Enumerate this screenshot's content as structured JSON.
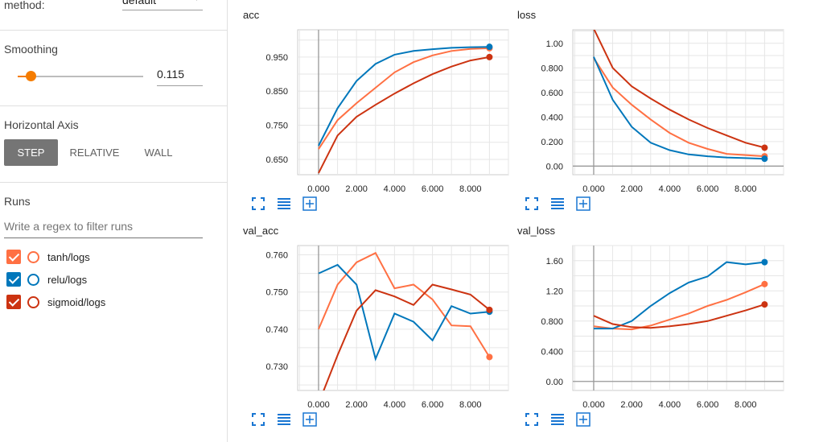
{
  "sidebar": {
    "method_label": "method:",
    "method_value": "default",
    "smoothing_label": "Smoothing",
    "smoothing_value": "0.115",
    "smoothing_fraction": 0.115,
    "horizontal_axis_label": "Horizontal Axis",
    "axis_buttons": [
      "STEP",
      "RELATIVE",
      "WALL"
    ],
    "runs_label": "Runs",
    "regex_placeholder": "Write a regex to filter runs",
    "runs": [
      {
        "name": "tanh/logs",
        "color": "#ff7043"
      },
      {
        "name": "relu/logs",
        "color": "#0077bb"
      },
      {
        "name": "sigmoid/logs",
        "color": "#cc3311"
      }
    ]
  },
  "charts": {
    "acc": {
      "title": "acc"
    },
    "loss": {
      "title": "loss"
    },
    "val_acc": {
      "title": "val_acc"
    },
    "val_loss": {
      "title": "val_loss"
    }
  },
  "chart_data": [
    {
      "type": "line",
      "title": "acc",
      "x": [
        0,
        1000,
        2000,
        3000,
        4000,
        5000,
        6000,
        7000,
        8000,
        9000
      ],
      "x_ticks": [
        "0.000",
        "2.000",
        "4.000",
        "6.000",
        "8.000"
      ],
      "y_ticks": [
        "0.650",
        "0.750",
        "0.850",
        "0.950"
      ],
      "xlim": [
        -1100,
        10000
      ],
      "ylim": [
        0.605,
        1.03
      ],
      "series": [
        {
          "name": "tanh/logs",
          "color": "#ff7043",
          "values": [
            0.68,
            0.765,
            0.815,
            0.86,
            0.905,
            0.935,
            0.955,
            0.968,
            0.974,
            0.976
          ]
        },
        {
          "name": "relu/logs",
          "color": "#0077bb",
          "values": [
            0.69,
            0.8,
            0.88,
            0.93,
            0.957,
            0.968,
            0.973,
            0.977,
            0.979,
            0.98
          ]
        },
        {
          "name": "sigmoid/logs",
          "color": "#cc3311",
          "values": [
            0.61,
            0.72,
            0.775,
            0.81,
            0.843,
            0.873,
            0.9,
            0.922,
            0.94,
            0.95
          ]
        }
      ]
    },
    {
      "type": "line",
      "title": "loss",
      "x": [
        0,
        1000,
        2000,
        3000,
        4000,
        5000,
        6000,
        7000,
        8000,
        9000
      ],
      "x_ticks": [
        "0.000",
        "2.000",
        "4.000",
        "6.000",
        "8.000"
      ],
      "y_ticks": [
        "0.00",
        "0.200",
        "0.400",
        "0.600",
        "0.800",
        "1.00"
      ],
      "xlim": [
        -1100,
        10000
      ],
      "ylim": [
        -0.07,
        1.11
      ],
      "series": [
        {
          "name": "tanh/logs",
          "color": "#ff7043",
          "values": [
            0.88,
            0.64,
            0.5,
            0.38,
            0.27,
            0.19,
            0.14,
            0.1,
            0.09,
            0.08
          ]
        },
        {
          "name": "relu/logs",
          "color": "#0077bb",
          "values": [
            0.89,
            0.54,
            0.32,
            0.19,
            0.13,
            0.095,
            0.08,
            0.07,
            0.065,
            0.06
          ]
        },
        {
          "name": "sigmoid/logs",
          "color": "#cc3311",
          "values": [
            1.12,
            0.8,
            0.65,
            0.55,
            0.46,
            0.38,
            0.31,
            0.25,
            0.19,
            0.15
          ]
        }
      ]
    },
    {
      "type": "line",
      "title": "val_acc",
      "x": [
        0,
        1000,
        2000,
        3000,
        4000,
        5000,
        6000,
        7000,
        8000,
        9000
      ],
      "x_ticks": [
        "0.000",
        "2.000",
        "4.000",
        "6.000",
        "8.000"
      ],
      "y_ticks": [
        "0.730",
        "0.740",
        "0.750",
        "0.760"
      ],
      "xlim": [
        -1100,
        10000
      ],
      "ylim": [
        0.7235,
        0.7625
      ],
      "series": [
        {
          "name": "tanh/logs",
          "color": "#ff7043",
          "values": [
            0.74,
            0.752,
            0.758,
            0.7605,
            0.751,
            0.752,
            0.748,
            0.741,
            0.7408,
            0.7325
          ]
        },
        {
          "name": "relu/logs",
          "color": "#0077bb",
          "values": [
            0.755,
            0.7573,
            0.752,
            0.732,
            0.7442,
            0.742,
            0.737,
            0.7462,
            0.7442,
            0.7447
          ]
        },
        {
          "name": "sigmoid/logs",
          "color": "#cc3311",
          "values": [
            0.72,
            0.733,
            0.745,
            0.7505,
            0.7488,
            0.7465,
            0.752,
            0.7507,
            0.7493,
            0.7452
          ]
        }
      ]
    },
    {
      "type": "line",
      "title": "val_loss",
      "x": [
        0,
        1000,
        2000,
        3000,
        4000,
        5000,
        6000,
        7000,
        8000,
        9000
      ],
      "x_ticks": [
        "0.000",
        "2.000",
        "4.000",
        "6.000",
        "8.000"
      ],
      "y_ticks": [
        "0.00",
        "0.400",
        "0.800",
        "1.20",
        "1.60"
      ],
      "xlim": [
        -1100,
        10000
      ],
      "ylim": [
        -0.12,
        1.8
      ],
      "series": [
        {
          "name": "tanh/logs",
          "color": "#ff7043",
          "values": [
            0.73,
            0.7,
            0.69,
            0.74,
            0.82,
            0.9,
            1.0,
            1.08,
            1.18,
            1.29
          ]
        },
        {
          "name": "relu/logs",
          "color": "#0077bb",
          "values": [
            0.7,
            0.7,
            0.8,
            1.0,
            1.17,
            1.31,
            1.39,
            1.58,
            1.55,
            1.58
          ]
        },
        {
          "name": "sigmoid/logs",
          "color": "#cc3311",
          "values": [
            0.87,
            0.76,
            0.72,
            0.71,
            0.73,
            0.76,
            0.8,
            0.87,
            0.94,
            1.02
          ]
        }
      ]
    }
  ]
}
